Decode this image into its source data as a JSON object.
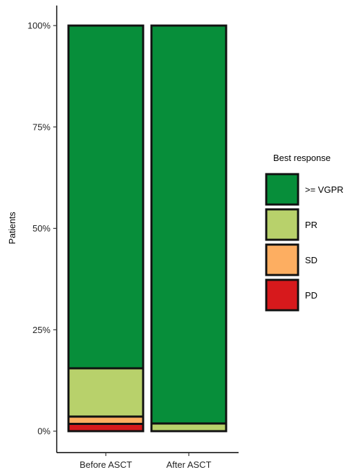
{
  "chart_data": {
    "type": "bar",
    "stacked": true,
    "ylabel": "Patients",
    "ylim": [
      0,
      100
    ],
    "yticks": [
      {
        "value": 0,
        "label": "0%"
      },
      {
        "value": 25,
        "label": "25%"
      },
      {
        "value": 50,
        "label": "50%"
      },
      {
        "value": 75,
        "label": "75%"
      },
      {
        "value": 100,
        "label": "100%"
      }
    ],
    "categories": [
      "Before ASCT",
      "After ASCT"
    ],
    "series": [
      {
        "name": "PD",
        "color": "#d7191c",
        "values": [
          1.8,
          0
        ]
      },
      {
        "name": "SD",
        "color": "#fdae61",
        "values": [
          1.8,
          0
        ]
      },
      {
        "name": "PR",
        "color": "#b8d16b",
        "values": [
          11.9,
          1.9
        ]
      },
      {
        "name": ">= VGPR",
        "color": "#078e3a",
        "values": [
          84.5,
          98.1
        ]
      }
    ],
    "legend": {
      "title": "Best response",
      "position": "right",
      "order": [
        ">= VGPR",
        "PR",
        "SD",
        "PD"
      ]
    },
    "grid": false
  }
}
